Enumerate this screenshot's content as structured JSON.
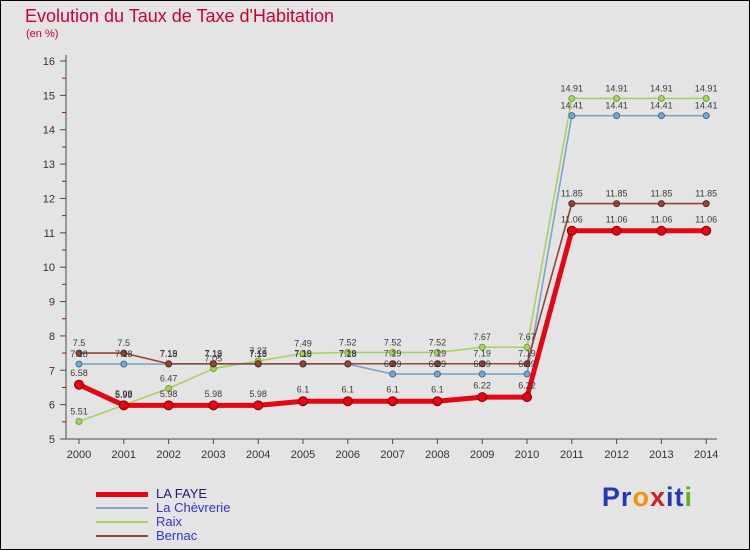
{
  "chart_data": {
    "type": "line",
    "title": "Evolution du Taux de Taxe d'Habitation",
    "subtitle": "(en %)",
    "xlabel": "",
    "ylabel": "",
    "x": [
      2000,
      2001,
      2002,
      2003,
      2004,
      2005,
      2006,
      2007,
      2008,
      2009,
      2010,
      2011,
      2012,
      2013,
      2014
    ],
    "ylim": [
      5,
      16
    ],
    "yticks": [
      5,
      6,
      7,
      8,
      9,
      10,
      11,
      12,
      13,
      14,
      15,
      16
    ],
    "grid": false,
    "legend_position": "bottom-left",
    "background_color": "#e4e4e4",
    "axis_color": "#4a4a4a",
    "minor_tick_color": "#cc0000",
    "series": [
      {
        "name": "LA FAYE",
        "color": "#e30613",
        "marker_edge": "#8f0000",
        "label_color": "#1c1c7a",
        "width": 5,
        "marker": 4.5,
        "values": [
          6.58,
          5.98,
          5.98,
          5.98,
          5.98,
          6.1,
          6.1,
          6.1,
          6.1,
          6.22,
          6.22,
          11.06,
          11.06,
          11.06,
          11.06
        ]
      },
      {
        "name": "La Chèvrerie",
        "color": "#7aa6cc",
        "marker_edge": "#3f6f99",
        "label_color": "#3434c8",
        "width": 1.6,
        "marker": 3,
        "values": [
          7.18,
          7.18,
          7.18,
          7.18,
          7.18,
          7.18,
          7.18,
          6.89,
          6.89,
          6.89,
          6.89,
          14.41,
          14.41,
          14.41,
          14.41
        ]
      },
      {
        "name": "Raix",
        "color": "#a8d161",
        "marker_edge": "#6fa32e",
        "label_color": "#3434c8",
        "width": 1.6,
        "marker": 3,
        "values": [
          5.51,
          5.99,
          6.47,
          7.05,
          7.27,
          7.49,
          7.52,
          7.52,
          7.52,
          7.67,
          7.67,
          14.91,
          14.91,
          14.91,
          14.91
        ]
      },
      {
        "name": "Bernac",
        "color": "#954535",
        "marker_edge": "#5c2a20",
        "label_color": "#3434c8",
        "width": 1.6,
        "marker": 3,
        "values": [
          7.5,
          7.5,
          7.19,
          7.19,
          7.19,
          7.19,
          7.19,
          7.19,
          7.19,
          7.19,
          7.19,
          11.85,
          11.85,
          11.85,
          11.85
        ]
      }
    ]
  },
  "logo": {
    "text": "Proxiti",
    "letters": [
      [
        "P",
        "#2438b8"
      ],
      [
        "r",
        "#2438b8"
      ],
      [
        "o",
        "#f39200"
      ],
      [
        "x",
        "#cc2026"
      ],
      [
        "i",
        "#2438b8"
      ],
      [
        "t",
        "#2438b8"
      ],
      [
        "i",
        "#67b021"
      ]
    ]
  }
}
